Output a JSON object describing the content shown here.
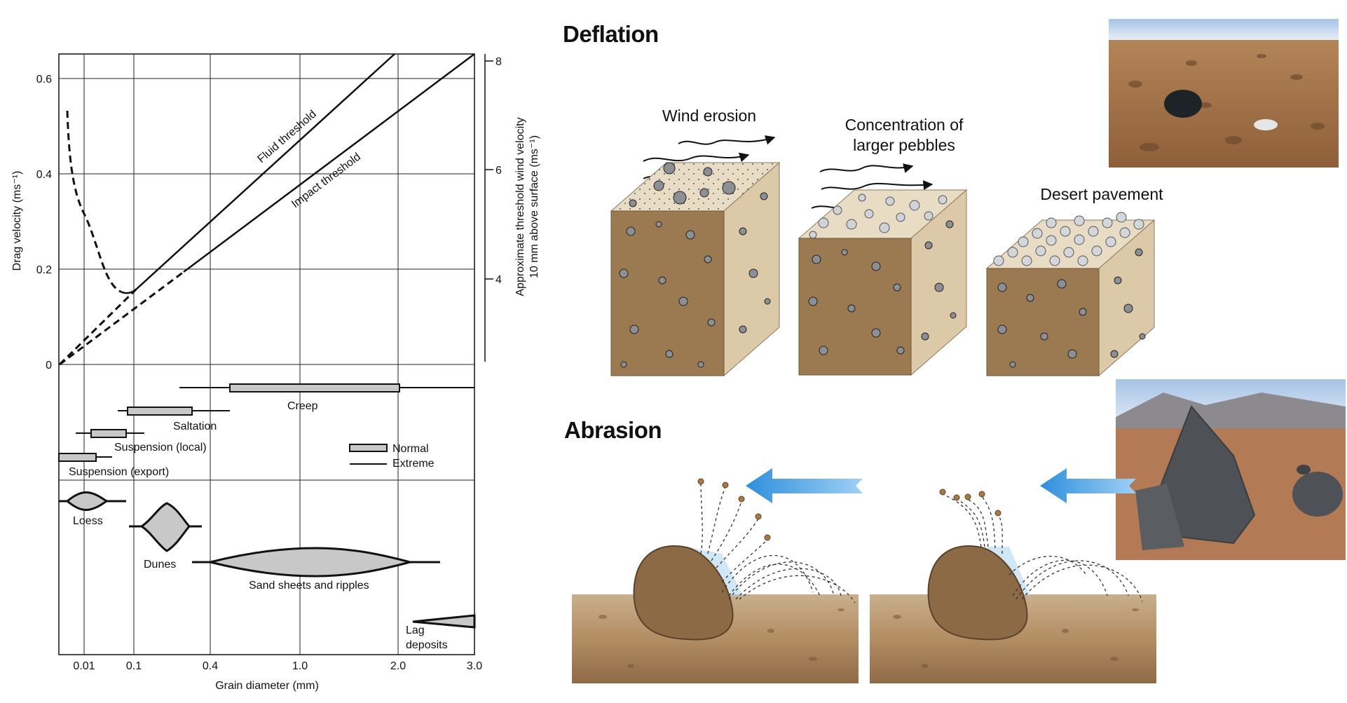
{
  "graph": {
    "y_left_label": "Drag velocity (ms⁻¹)",
    "y_left_ticks": [
      "0.6",
      "0.4",
      "0.2",
      "0"
    ],
    "y_right_label_line1": "Approximate threshold wind velocity",
    "y_right_label_line2": "10 mm above surface (ms⁻¹)",
    "y_right_ticks": [
      "8",
      "6",
      "4"
    ],
    "x_label": "Grain diameter (mm)",
    "x_ticks": [
      "0.01",
      "0.1",
      "0.4",
      "1.0",
      "2.0",
      "3.0"
    ],
    "curve_labels": {
      "fluid": "Fluid threshold",
      "impact": "Impact threshold"
    },
    "transport": {
      "creep": "Creep",
      "saltation": "Saltation",
      "suspension_local": "Suspension (local)",
      "suspension_export": "Suspension (export)",
      "legend_normal": "Normal",
      "legend_extreme": "Extreme"
    },
    "deposits": {
      "loess": "Loess",
      "dunes": "Dunes",
      "sand_sheets": "Sand sheets and ripples",
      "lag_line1": "Lag",
      "lag_line2": "deposits"
    }
  },
  "deflation": {
    "title": "Deflation",
    "stage1": "Wind erosion",
    "stage2_line1": "Concentration of",
    "stage2_line2": "larger pebbles",
    "stage3": "Desert pavement"
  },
  "abrasion": {
    "title": "Abrasion"
  },
  "colors": {
    "soil_front": "#9b7a52",
    "soil_side": "#dcc9a8",
    "soil_top": "#e8dcc4",
    "pebble": "#8c8f94",
    "bar_fill": "#c8c8c8",
    "wind_arrow": "#3d9be0"
  }
}
